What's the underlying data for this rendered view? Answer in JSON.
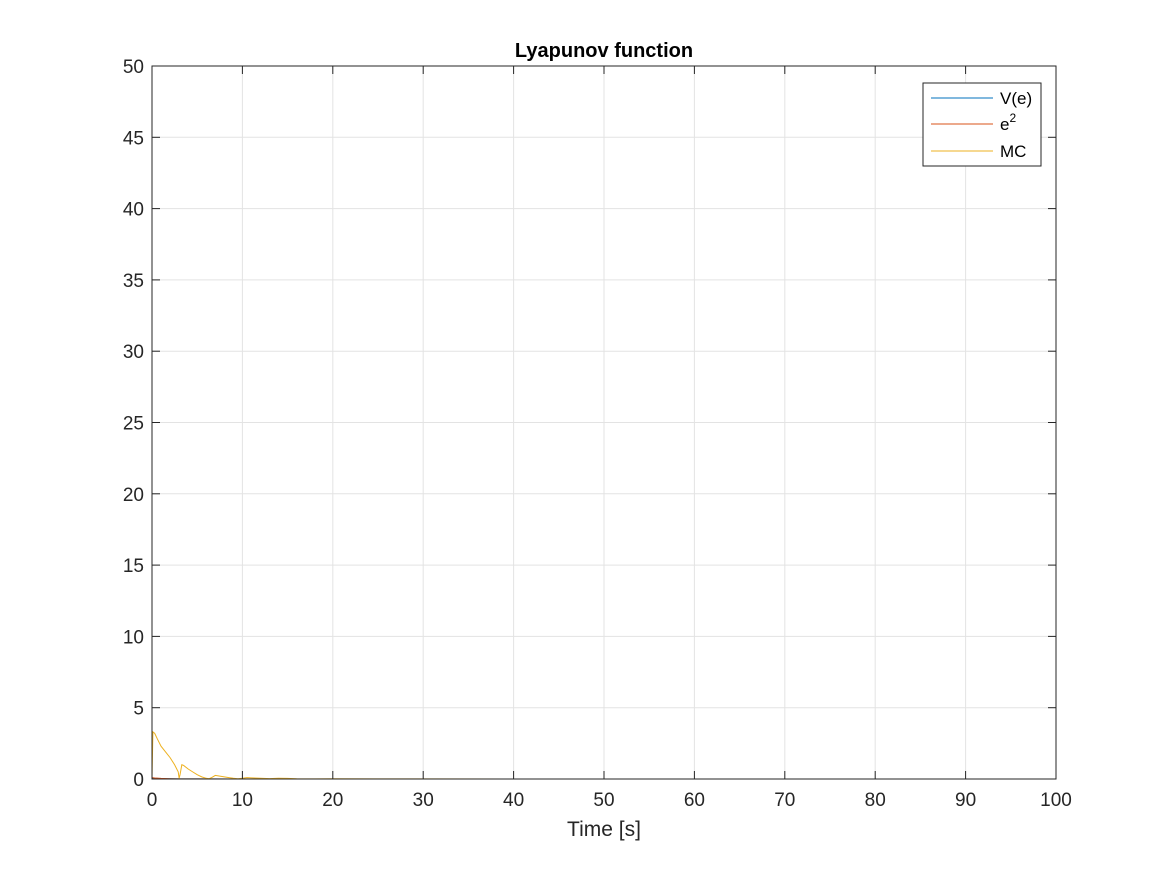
{
  "chart_data": {
    "type": "line",
    "title": "Lyapunov function",
    "xlabel": "Time [s]",
    "ylabel": "",
    "xlim": [
      0,
      100
    ],
    "ylim": [
      0,
      50
    ],
    "xticks": [
      0,
      10,
      20,
      30,
      40,
      50,
      60,
      70,
      80,
      90,
      100
    ],
    "yticks": [
      0,
      5,
      10,
      15,
      20,
      25,
      30,
      35,
      40,
      45,
      50
    ],
    "grid": true,
    "legend_position": "top-right",
    "series": [
      {
        "name": "V(e)",
        "color": "#0072BD",
        "x": [
          0,
          0.3,
          1,
          2,
          3,
          5,
          10,
          20,
          40,
          60,
          80,
          100
        ],
        "y": [
          0.08,
          0.05,
          0.03,
          0.02,
          0.01,
          0.005,
          0.0,
          0.0,
          0.0,
          0.0,
          0.0,
          0.0
        ]
      },
      {
        "name": "e",
        "name_superscript": "2",
        "color": "#D95319",
        "x": [
          0,
          0.3,
          1,
          2,
          3,
          5,
          10,
          20,
          40,
          60,
          80,
          100
        ],
        "y": [
          0.1,
          0.07,
          0.04,
          0.02,
          0.01,
          0.005,
          0.0,
          0.0,
          0.0,
          0.0,
          0.0,
          0.0
        ]
      },
      {
        "name": "MC",
        "color": "#EDB120",
        "x": [
          0,
          0.1,
          0.3,
          0.6,
          1.0,
          1.5,
          2.0,
          2.5,
          2.9,
          3.0,
          3.1,
          3.3,
          3.5,
          4.0,
          4.5,
          5.0,
          5.5,
          6.0,
          6.3,
          6.6,
          7.0,
          7.5,
          8.0,
          8.5,
          9.0,
          9.5,
          10.0,
          10.5,
          11.0,
          12.0,
          13.0,
          14.0,
          15.0,
          16.0,
          18.0,
          20.0,
          25.0,
          30.0,
          40.0,
          50.0,
          60.0,
          70.0,
          80.0,
          90.0,
          100.0
        ],
        "y": [
          0.0,
          3.3,
          3.2,
          2.8,
          2.3,
          1.9,
          1.5,
          1.0,
          0.5,
          0.05,
          0.3,
          1.0,
          0.95,
          0.7,
          0.5,
          0.3,
          0.15,
          0.05,
          0.02,
          0.1,
          0.25,
          0.2,
          0.15,
          0.1,
          0.05,
          0.02,
          0.05,
          0.1,
          0.08,
          0.05,
          0.03,
          0.05,
          0.04,
          0.02,
          0.01,
          0.02,
          0.01,
          0.01,
          0.0,
          0.0,
          0.0,
          0.0,
          0.0,
          0.0,
          0.0
        ]
      }
    ]
  }
}
